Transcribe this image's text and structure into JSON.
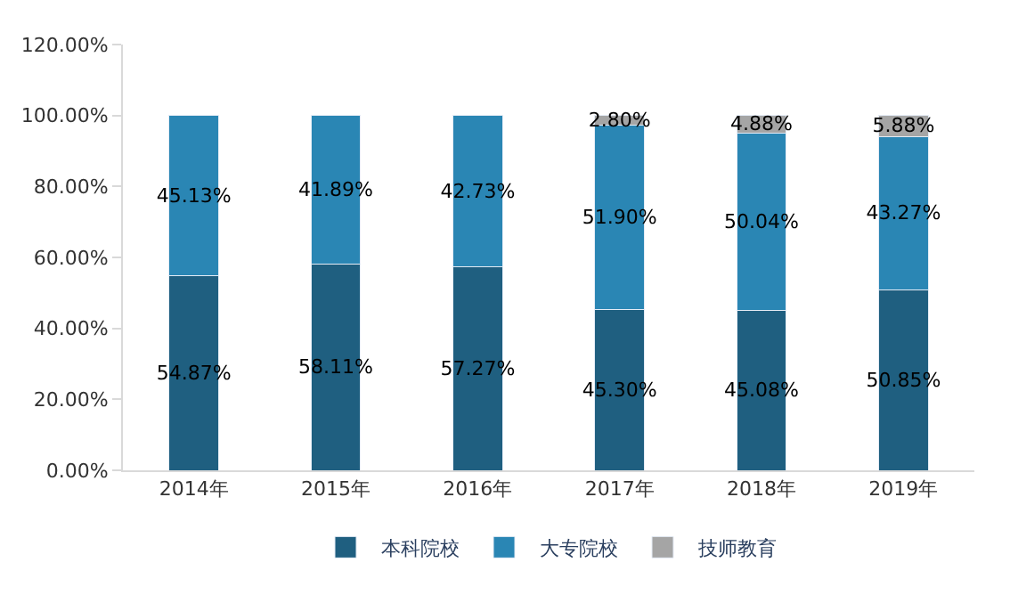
{
  "chart_data": {
    "type": "bar",
    "stacked": true,
    "categories": [
      "2014年",
      "2015年",
      "2016年",
      "2017年",
      "2018年",
      "2019年"
    ],
    "series": [
      {
        "name": "本科院校",
        "color": "#1f5f80",
        "values": [
          54.87,
          58.11,
          57.27,
          45.3,
          45.08,
          50.85
        ],
        "value_labels": [
          "54.87%",
          "58.11%",
          "57.27%",
          "45.30%",
          "45.08%",
          "50.85%"
        ]
      },
      {
        "name": "大专院校",
        "color": "#2a86b4",
        "values": [
          45.13,
          41.89,
          42.73,
          51.9,
          50.04,
          43.27
        ],
        "value_labels": [
          "45.13%",
          "41.89%",
          "42.73%",
          "51.90%",
          "50.04%",
          "43.27%"
        ]
      },
      {
        "name": "技师教育",
        "color": "#a5a5a5",
        "values": [
          null,
          null,
          null,
          2.8,
          4.88,
          5.88
        ],
        "value_labels": [
          null,
          null,
          null,
          "2.80%",
          "4.88%",
          "5.88%"
        ]
      }
    ],
    "ylim": [
      0,
      120
    ],
    "yticks": [
      {
        "value": 0,
        "label": "0.00%"
      },
      {
        "value": 20,
        "label": "20.00%"
      },
      {
        "value": 40,
        "label": "40.00%"
      },
      {
        "value": 60,
        "label": "60.00%"
      },
      {
        "value": 80,
        "label": "80.00%"
      },
      {
        "value": 100,
        "label": "100.00%"
      },
      {
        "value": 120,
        "label": "120.00%"
      }
    ],
    "legend": "bottom"
  }
}
